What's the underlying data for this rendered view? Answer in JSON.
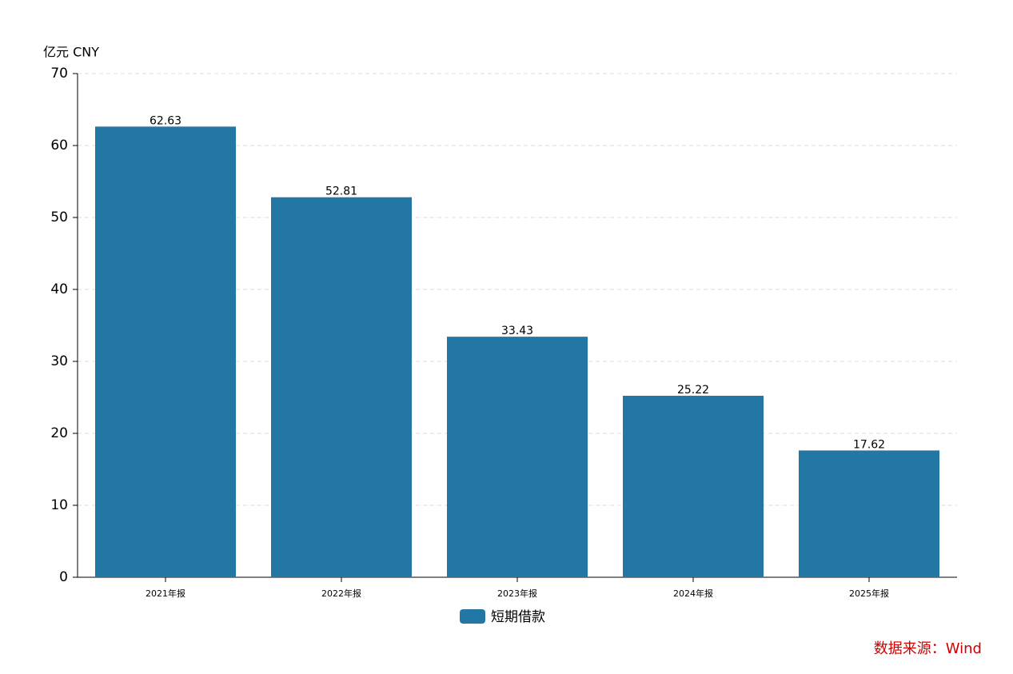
{
  "chart_data": {
    "type": "bar",
    "y_label": "亿元  CNY",
    "categories": [
      "2021年报",
      "2022年报",
      "2023年报",
      "2024年报",
      "2025年报"
    ],
    "series": [
      {
        "name": "短期借款",
        "color": "#2377a4",
        "values": [
          62.63,
          52.81,
          33.43,
          25.22,
          17.62
        ]
      }
    ],
    "ylim": [
      0,
      70
    ],
    "yticks": [
      0,
      10,
      20,
      30,
      40,
      50,
      60,
      70
    ],
    "grid": true,
    "legend": "bottom",
    "source": "数据来源：Wind"
  }
}
